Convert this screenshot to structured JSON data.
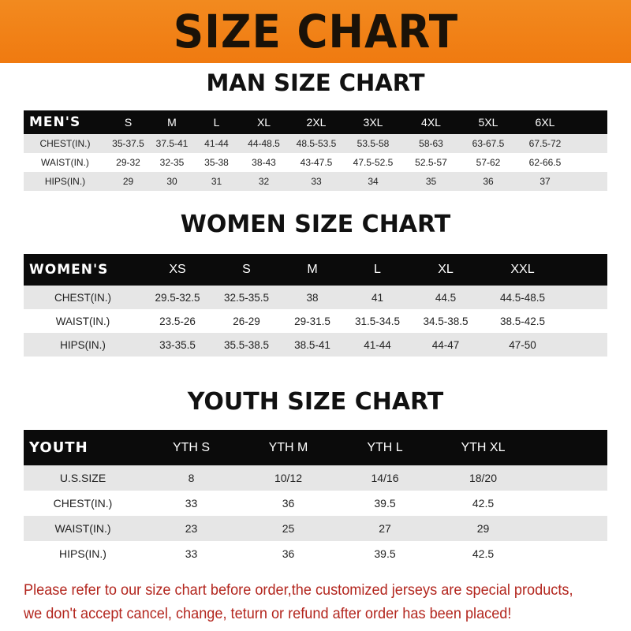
{
  "banner": {
    "title": "SIZE CHART",
    "color": "#f28a1f"
  },
  "men": {
    "title": "MAN SIZE CHART",
    "header": [
      "MEN'S",
      "S",
      "M",
      "L",
      "XL",
      "2XL",
      "3XL",
      "4XL",
      "5XL",
      "6XL"
    ],
    "rows": [
      [
        "CHEST(IN.)",
        "35-37.5",
        "37.5-41",
        "41-44",
        "44-48.5",
        "48.5-53.5",
        "53.5-58",
        "58-63",
        "63-67.5",
        "67.5-72"
      ],
      [
        "WAIST(IN.)",
        "29-32",
        "32-35",
        "35-38",
        "38-43",
        "43-47.5",
        "47.5-52.5",
        "52.5-57",
        "57-62",
        "62-66.5"
      ],
      [
        "HIPS(IN.)",
        "29",
        "30",
        "31",
        "32",
        "33",
        "34",
        "35",
        "36",
        "37"
      ]
    ]
  },
  "women": {
    "title": "WOMEN SIZE CHART",
    "header": [
      "WOMEN'S",
      "XS",
      "S",
      "M",
      "L",
      "XL",
      "XXL"
    ],
    "rows": [
      [
        "CHEST(IN.)",
        "29.5-32.5",
        "32.5-35.5",
        "38",
        "41",
        "44.5",
        "44.5-48.5"
      ],
      [
        "WAIST(IN.)",
        "23.5-26",
        "26-29",
        "29-31.5",
        "31.5-34.5",
        "34.5-38.5",
        "38.5-42.5"
      ],
      [
        "HIPS(IN.)",
        "33-35.5",
        "35.5-38.5",
        "38.5-41",
        "41-44",
        "44-47",
        "47-50"
      ]
    ]
  },
  "youth": {
    "title": "YOUTH SIZE CHART",
    "header": [
      "YOUTH",
      "YTH S",
      "YTH M",
      "YTH L",
      "YTH XL"
    ],
    "rows": [
      [
        "U.S.SIZE",
        "8",
        "10/12",
        "14/16",
        "18/20"
      ],
      [
        "CHEST(IN.)",
        "33",
        "36",
        "39.5",
        "42.5"
      ],
      [
        "WAIST(IN.)",
        "23",
        "25",
        "27",
        "29"
      ],
      [
        "HIPS(IN.)",
        "33",
        "36",
        "39.5",
        "42.5"
      ]
    ]
  },
  "note": {
    "line1": "Please refer to our size chart before order,the customized jerseys are special products,",
    "line2": "we don't accept cancel, change, teturn or refund after order has been placed!",
    "color": "#b3261e"
  }
}
